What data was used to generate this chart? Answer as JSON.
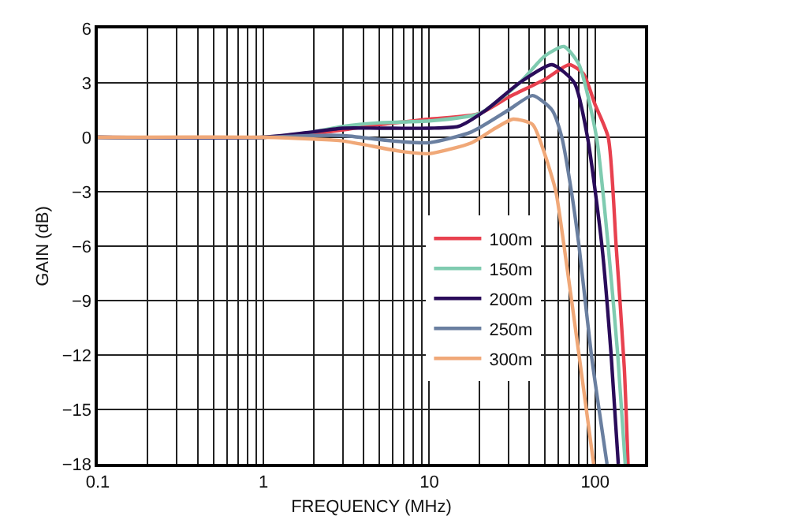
{
  "chart_data": {
    "type": "line",
    "xlabel": "FREQUENCY (MHz)",
    "ylabel": "GAIN (dB)",
    "log": "x",
    "grid": true,
    "legend": "right",
    "marker": "none",
    "line_style": "solid",
    "xlim": [
      0.1,
      200
    ],
    "ylim": [
      -18,
      6
    ],
    "xticks": [
      0.1,
      {
        "value": 0.2,
        "label": null
      },
      {
        "value": 0.3,
        "label": null
      },
      {
        "value": 0.4,
        "label": null
      },
      {
        "value": 0.5,
        "label": null
      },
      {
        "value": 0.6,
        "label": null
      },
      {
        "value": 0.7,
        "label": null
      },
      {
        "value": 0.8,
        "label": null
      },
      {
        "value": 0.9,
        "label": null
      },
      1,
      {
        "value": 2,
        "label": null
      },
      {
        "value": 3,
        "label": null
      },
      {
        "value": 4,
        "label": null
      },
      {
        "value": 5,
        "label": null
      },
      {
        "value": 6,
        "label": null
      },
      {
        "value": 7,
        "label": null
      },
      {
        "value": 8,
        "label": null
      },
      {
        "value": 9,
        "label": null
      },
      10,
      {
        "value": 20,
        "label": null
      },
      {
        "value": 30,
        "label": null
      },
      {
        "value": 40,
        "label": null
      },
      {
        "value": 50,
        "label": null
      },
      {
        "value": 60,
        "label": null
      },
      {
        "value": 70,
        "label": null
      },
      {
        "value": 80,
        "label": null
      },
      {
        "value": 90,
        "label": null
      },
      100,
      {
        "value": 200,
        "label": null
      }
    ],
    "yticks": [
      6,
      3,
      0,
      {
        "value": -3,
        "label": "−3"
      },
      {
        "value": -6,
        "label": "−6"
      },
      {
        "value": -9,
        "label": "−9"
      },
      {
        "value": -12,
        "label": "−12"
      },
      {
        "value": -15,
        "label": "−15"
      },
      {
        "value": -18,
        "label": "−18"
      }
    ],
    "series": [
      {
        "name": "100m",
        "color": "#e8414f",
        "x": [
          0.1,
          1,
          2,
          3,
          5,
          10,
          20,
          30,
          50,
          70,
          85,
          100,
          120,
          134,
          150,
          158
        ],
        "values": [
          0,
          0,
          0.2,
          0.4,
          0.7,
          1.0,
          1.3,
          2.2,
          3.2,
          4.0,
          3.5,
          1.8,
          0,
          -6,
          -12.7,
          -18
        ]
      },
      {
        "name": "150m",
        "color": "#7fcbb0",
        "x": [
          0.1,
          1,
          2,
          3,
          5,
          10,
          20,
          35,
          50,
          65,
          80,
          102,
          120,
          137,
          152
        ],
        "values": [
          0,
          0,
          0.3,
          0.6,
          0.8,
          0.9,
          1.3,
          3.0,
          4.5,
          5.0,
          4.0,
          0,
          -6,
          -12,
          -18
        ]
      },
      {
        "name": "200m",
        "color": "#2a0c5a",
        "x": [
          0.1,
          1,
          2,
          3,
          5,
          10,
          15,
          22,
          35,
          55,
          75,
          90,
          110,
          125,
          138
        ],
        "values": [
          0,
          0,
          0.3,
          0.5,
          0.5,
          0.5,
          0.6,
          1.5,
          3.0,
          4.0,
          3.0,
          0,
          -6,
          -12,
          -18
        ]
      },
      {
        "name": "250m",
        "color": "#6a7fa0",
        "x": [
          0.1,
          1,
          2,
          3,
          6,
          10,
          18,
          30,
          42,
          55,
          63,
          72,
          80,
          95,
          118
        ],
        "values": [
          0,
          0,
          0.1,
          0.1,
          -0.2,
          -0.3,
          0.3,
          1.5,
          2.3,
          1.5,
          0,
          -3,
          -6,
          -12,
          -18
        ]
      },
      {
        "name": "300m",
        "color": "#f0a878",
        "x": [
          0.1,
          1,
          2,
          3,
          7,
          10,
          18,
          25,
          32,
          42,
          50,
          58,
          65,
          80,
          98
        ],
        "values": [
          0,
          0,
          -0.1,
          -0.2,
          -0.8,
          -0.9,
          -0.3,
          0.5,
          1.0,
          0.7,
          -1,
          -3,
          -6,
          -12,
          -18
        ]
      }
    ]
  }
}
